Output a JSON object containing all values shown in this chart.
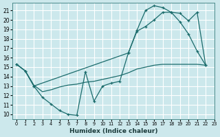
{
  "xlabel": "Humidex (Indice chaleur)",
  "bg_color": "#cce8ec",
  "grid_color": "#ffffff",
  "line_color": "#1a6b6b",
  "xlim": [
    -0.5,
    23
  ],
  "ylim": [
    9.5,
    21.8
  ],
  "xticks": [
    0,
    1,
    2,
    3,
    4,
    5,
    6,
    7,
    8,
    9,
    10,
    11,
    12,
    13,
    14,
    15,
    16,
    17,
    18,
    19,
    20,
    21,
    22,
    23
  ],
  "yticks": [
    10,
    11,
    12,
    13,
    14,
    15,
    16,
    17,
    18,
    19,
    20,
    21
  ],
  "curve_x": [
    0,
    1,
    2,
    3,
    4,
    5,
    6,
    7,
    8,
    9,
    10,
    11,
    12,
    13,
    14,
    15,
    16,
    17,
    18,
    19,
    20,
    21,
    22
  ],
  "curve_y": [
    15.3,
    14.6,
    13.0,
    11.8,
    11.1,
    10.4,
    10.0,
    9.9,
    14.5,
    11.4,
    13.0,
    13.3,
    13.5,
    16.5,
    18.8,
    19.3,
    20.0,
    20.8,
    20.8,
    19.8,
    18.5,
    16.7,
    15.2
  ],
  "upper_x": [
    0,
    1,
    2,
    13,
    14,
    15,
    16,
    17,
    18,
    19,
    20,
    21,
    22
  ],
  "upper_y": [
    15.3,
    14.6,
    13.0,
    16.5,
    18.9,
    21.0,
    21.5,
    21.3,
    20.8,
    20.7,
    19.9,
    20.8,
    15.2
  ],
  "flat_x": [
    0,
    1,
    2,
    3,
    4,
    5,
    6,
    7,
    8,
    9,
    10,
    11,
    12,
    13,
    14,
    15,
    16,
    17,
    18,
    19,
    20,
    21,
    22
  ],
  "flat_y": [
    15.3,
    14.6,
    13.1,
    12.4,
    12.6,
    12.9,
    13.1,
    13.2,
    13.4,
    13.5,
    13.7,
    13.9,
    14.1,
    14.4,
    14.8,
    15.0,
    15.2,
    15.3,
    15.3,
    15.3,
    15.3,
    15.3,
    15.2
  ]
}
